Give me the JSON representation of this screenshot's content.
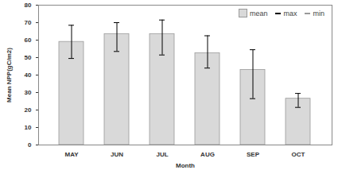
{
  "chart_data": {
    "type": "bar",
    "categories": [
      "MAY",
      "JUN",
      "JUL",
      "AUG",
      "SEP",
      "OCT"
    ],
    "series": [
      {
        "name": "mean",
        "type": "bar",
        "color": "#d9d9d9",
        "values": [
          59,
          63.5,
          63.5,
          52.5,
          43,
          26.5
        ]
      },
      {
        "name": "max",
        "type": "errorbar",
        "color": "#000000",
        "values": [
          68.5,
          70,
          71.5,
          62.5,
          54.5,
          29.5
        ]
      },
      {
        "name": "min",
        "type": "errorbar",
        "color": "#999999",
        "values": [
          49.5,
          53.5,
          51.5,
          44,
          26.5,
          21.5
        ]
      }
    ],
    "x_label": "Month",
    "y_label": "Mean NPP(gC/m2)",
    "ylim": [
      0,
      80
    ],
    "yticks": [
      0,
      10,
      20,
      30,
      40,
      50,
      60,
      70,
      80
    ],
    "grid": false,
    "legend": "upper right"
  }
}
